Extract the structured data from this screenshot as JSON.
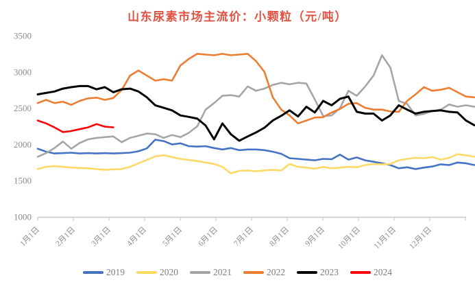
{
  "chart_data": {
    "type": "line",
    "title": "山东尿素市场主流价：小颗粒（元/吨）",
    "title_color": "#E15241",
    "unit": "元/吨",
    "grid": false,
    "legend_position": "bottom",
    "x_axis": {
      "labels": [
        "1月1日",
        "2月1日",
        "3月1日",
        "4月1日",
        "5月1日",
        "6月1日",
        "7月1日",
        "8月1日",
        "9月1日",
        "10月1日",
        "11月1日",
        "12月1日"
      ],
      "note": "weekly data points across one year"
    },
    "y_axis": {
      "min": 1000,
      "max": 3500,
      "ticks": [
        1000,
        1500,
        2000,
        2500,
        3000,
        3500
      ]
    },
    "series": [
      {
        "name": "2019",
        "color": "#4472C4",
        "values": [
          1940,
          1900,
          1875,
          1880,
          1885,
          1875,
          1880,
          1875,
          1880,
          1875,
          1880,
          1885,
          1905,
          1945,
          2065,
          2045,
          2000,
          2015,
          1975,
          1970,
          1975,
          1950,
          1930,
          1950,
          1920,
          1930,
          1930,
          1920,
          1900,
          1870,
          1810,
          1800,
          1790,
          1780,
          1800,
          1795,
          1860,
          1790,
          1820,
          1780,
          1760,
          1740,
          1715,
          1670,
          1685,
          1660,
          1680,
          1695,
          1725,
          1715,
          1750,
          1740,
          1715
        ]
      },
      {
        "name": "2020",
        "color": "#FFD965",
        "values": [
          1660,
          1690,
          1700,
          1690,
          1680,
          1675,
          1670,
          1660,
          1650,
          1655,
          1660,
          1690,
          1740,
          1785,
          1835,
          1850,
          1825,
          1800,
          1785,
          1770,
          1750,
          1730,
          1690,
          1600,
          1635,
          1640,
          1630,
          1640,
          1650,
          1640,
          1730,
          1690,
          1680,
          1665,
          1690,
          1670,
          1680,
          1690,
          1685,
          1715,
          1730,
          1725,
          1730,
          1780,
          1800,
          1815,
          1810,
          1825,
          1790,
          1815,
          1865,
          1850,
          1830
        ]
      },
      {
        "name": "2021",
        "color": "#A5A5A5",
        "values": [
          1830,
          1880,
          1950,
          2040,
          1940,
          2020,
          2070,
          2090,
          2100,
          2110,
          2030,
          2090,
          2120,
          2150,
          2140,
          2090,
          2130,
          2100,
          2160,
          2250,
          2480,
          2570,
          2670,
          2680,
          2660,
          2800,
          2740,
          2770,
          2820,
          2850,
          2830,
          2850,
          2840,
          2620,
          2390,
          2400,
          2500,
          2740,
          2670,
          2800,
          2950,
          3230,
          3060,
          2600,
          2560,
          2400,
          2420,
          2460,
          2480,
          2550,
          2520,
          2540,
          2520
        ]
      },
      {
        "name": "2022",
        "color": "#ED7D31",
        "values": [
          2570,
          2615,
          2570,
          2590,
          2545,
          2600,
          2635,
          2645,
          2615,
          2640,
          2750,
          2950,
          3020,
          2950,
          2880,
          2900,
          2880,
          3090,
          3180,
          3250,
          3240,
          3230,
          3250,
          3230,
          3240,
          3250,
          3150,
          3000,
          2650,
          2480,
          2400,
          2290,
          2330,
          2370,
          2375,
          2440,
          2490,
          2560,
          2570,
          2505,
          2480,
          2480,
          2455,
          2450,
          2600,
          2690,
          2790,
          2740,
          2755,
          2780,
          2720,
          2660,
          2650
        ]
      },
      {
        "name": "2023",
        "color": "#000000",
        "values": [
          2690,
          2710,
          2730,
          2770,
          2790,
          2805,
          2805,
          2760,
          2790,
          2720,
          2760,
          2770,
          2730,
          2650,
          2540,
          2505,
          2470,
          2400,
          2380,
          2355,
          2260,
          2070,
          2290,
          2140,
          2050,
          2110,
          2165,
          2230,
          2330,
          2395,
          2470,
          2385,
          2520,
          2440,
          2600,
          2540,
          2630,
          2660,
          2450,
          2425,
          2425,
          2330,
          2400,
          2540,
          2480,
          2425,
          2450,
          2460,
          2470,
          2450,
          2440,
          2330,
          2265
        ]
      },
      {
        "name": "2024",
        "color": "#FF0000",
        "values": [
          2330,
          2290,
          2235,
          2170,
          2185,
          2210,
          2235,
          2280,
          2245,
          2235
        ]
      }
    ]
  },
  "style": {
    "axis_label_color": "#8c8c8c",
    "axis_line_color": "#c9c9c9",
    "legend_text_color": "#7f7f7f"
  }
}
